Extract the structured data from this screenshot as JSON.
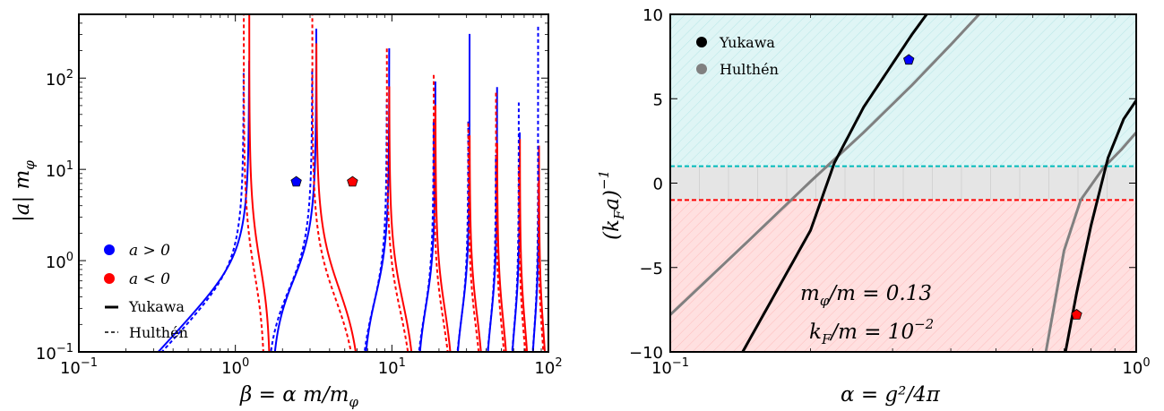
{
  "chart_data": [
    {
      "type": "line",
      "xlabel": "β = α m/m_φ",
      "ylabel": "|a| m_φ",
      "x_scale": "log",
      "y_scale": "log",
      "xlim": [
        0.1,
        100
      ],
      "ylim": [
        0.1,
        500
      ],
      "x_ticks": [
        "10^-1",
        "10^0",
        "10^1",
        "10^2"
      ],
      "y_ticks": [
        "10^-1",
        "10^0",
        "10^1",
        "10^2"
      ],
      "legend": {
        "placement": "lower-left",
        "entries": [
          {
            "label": "a > 0",
            "marker": "dot",
            "color": "#0000ff"
          },
          {
            "label": "a < 0",
            "marker": "dot",
            "color": "#ff0000"
          },
          {
            "label": "Yukawa",
            "marker": "solid-line",
            "color": "#000000"
          },
          {
            "label": "Hulthén",
            "marker": "dashed-line",
            "color": "#000000"
          }
        ]
      },
      "series": [
        {
          "name": "Yukawa",
          "style": "solid",
          "resonances": [
            1.68,
            6.45,
            14.34,
            25.1,
            39.2,
            56.4,
            76.5,
            99.0
          ]
        },
        {
          "name": "Hulthén",
          "style": "dashed",
          "resonances": [
            1.55,
            6.2,
            13.9,
            24.6,
            38.5,
            55.5,
            75.4,
            98.0
          ]
        }
      ],
      "markers": [
        {
          "x": 2.45,
          "y": 7.3,
          "color": "#0000ff",
          "shape": "pentagon"
        },
        {
          "x": 5.6,
          "y": 7.3,
          "color": "#ff0000",
          "shape": "pentagon"
        }
      ]
    },
    {
      "type": "line",
      "xlabel": "α = g²/4π",
      "ylabel": "(k_F a)^-1",
      "x_scale": "log",
      "xlim": [
        0.1,
        1.0
      ],
      "ylim": [
        -10,
        10
      ],
      "x_ticks": [
        "10^-1",
        "10^0"
      ],
      "y_ticks": [
        "10",
        "5",
        "0",
        "−5",
        "−10"
      ],
      "legend": {
        "placement": "top-left",
        "entries": [
          {
            "label": "Yukawa",
            "color": "#000000"
          },
          {
            "label": "Hulthén",
            "color": "#808080"
          }
        ]
      },
      "bands": [
        {
          "from": 1,
          "to": 10,
          "color": "#dff5f5",
          "line": "#00bbbb"
        },
        {
          "from": -1,
          "to": 1,
          "color": "#e5e5e5"
        },
        {
          "from": -10,
          "to": -1,
          "color": "#ffe0e0",
          "line": "#ff0000"
        }
      ],
      "series": [
        {
          "name": "Yukawa",
          "color": "#000000",
          "segments": [
            [
              [
                0.143,
                -10
              ],
              [
                0.2,
                -2.8
              ],
              [
                0.225,
                1.2
              ],
              [
                0.26,
                4.5
              ],
              [
                0.33,
                8.8
              ],
              [
                0.355,
                10
              ]
            ],
            [
              [
                0.705,
                -10
              ],
              [
                0.745,
                -6.5
              ],
              [
                0.8,
                -2.5
              ],
              [
                0.87,
                1.5
              ],
              [
                0.94,
                3.8
              ],
              [
                1.0,
                4.9
              ]
            ]
          ]
        },
        {
          "name": "Hulthén",
          "color": "#808080",
          "segments": [
            [
              [
                0.1,
                -7.8
              ],
              [
                0.15,
                -3.2
              ],
              [
                0.2,
                0.1
              ],
              [
                0.26,
                3.0
              ],
              [
                0.33,
                5.8
              ],
              [
                0.4,
                8.2
              ],
              [
                0.46,
                10
              ]
            ],
            [
              [
                0.64,
                -10
              ],
              [
                0.7,
                -4.0
              ],
              [
                0.76,
                -1.0
              ],
              [
                0.85,
                0.9
              ],
              [
                0.93,
                2.0
              ],
              [
                1.0,
                3.0
              ]
            ]
          ]
        }
      ],
      "markers": [
        {
          "x": 0.325,
          "y": 7.3,
          "color": "#0000ff",
          "shape": "pentagon"
        },
        {
          "x": 0.745,
          "y": -7.8,
          "color": "#ff0000",
          "shape": "pentagon"
        }
      ],
      "annotations": [
        "m_φ/m = 0.13",
        "k_F/m = 10^-2"
      ]
    }
  ],
  "text": {
    "left_xlabel": "β = α m/m",
    "left_xlabel_sub": "φ",
    "left_ylabel": "|a| m",
    "left_ylabel_sub": "φ",
    "leg_apos": "a > 0",
    "leg_aneg": "a < 0",
    "leg_yukawa": "Yukawa",
    "leg_hulthen": "Hulthén",
    "right_xlabel": "α = g²/4π",
    "right_ylabel": "(k",
    "right_ylabel_sub": "F",
    "right_ylabel_tail": "a)",
    "right_ylabel_sup": "−1",
    "annot1_main": "m",
    "annot1_sub": "φ",
    "annot1_tail": "/m = 0.13",
    "annot2_main": "k",
    "annot2_sub": "F",
    "annot2_tail": "/m = 10",
    "annot2_sup": "−2",
    "right_leg_yukawa": "Yukawa",
    "right_leg_hulthen": "Hulthén"
  }
}
